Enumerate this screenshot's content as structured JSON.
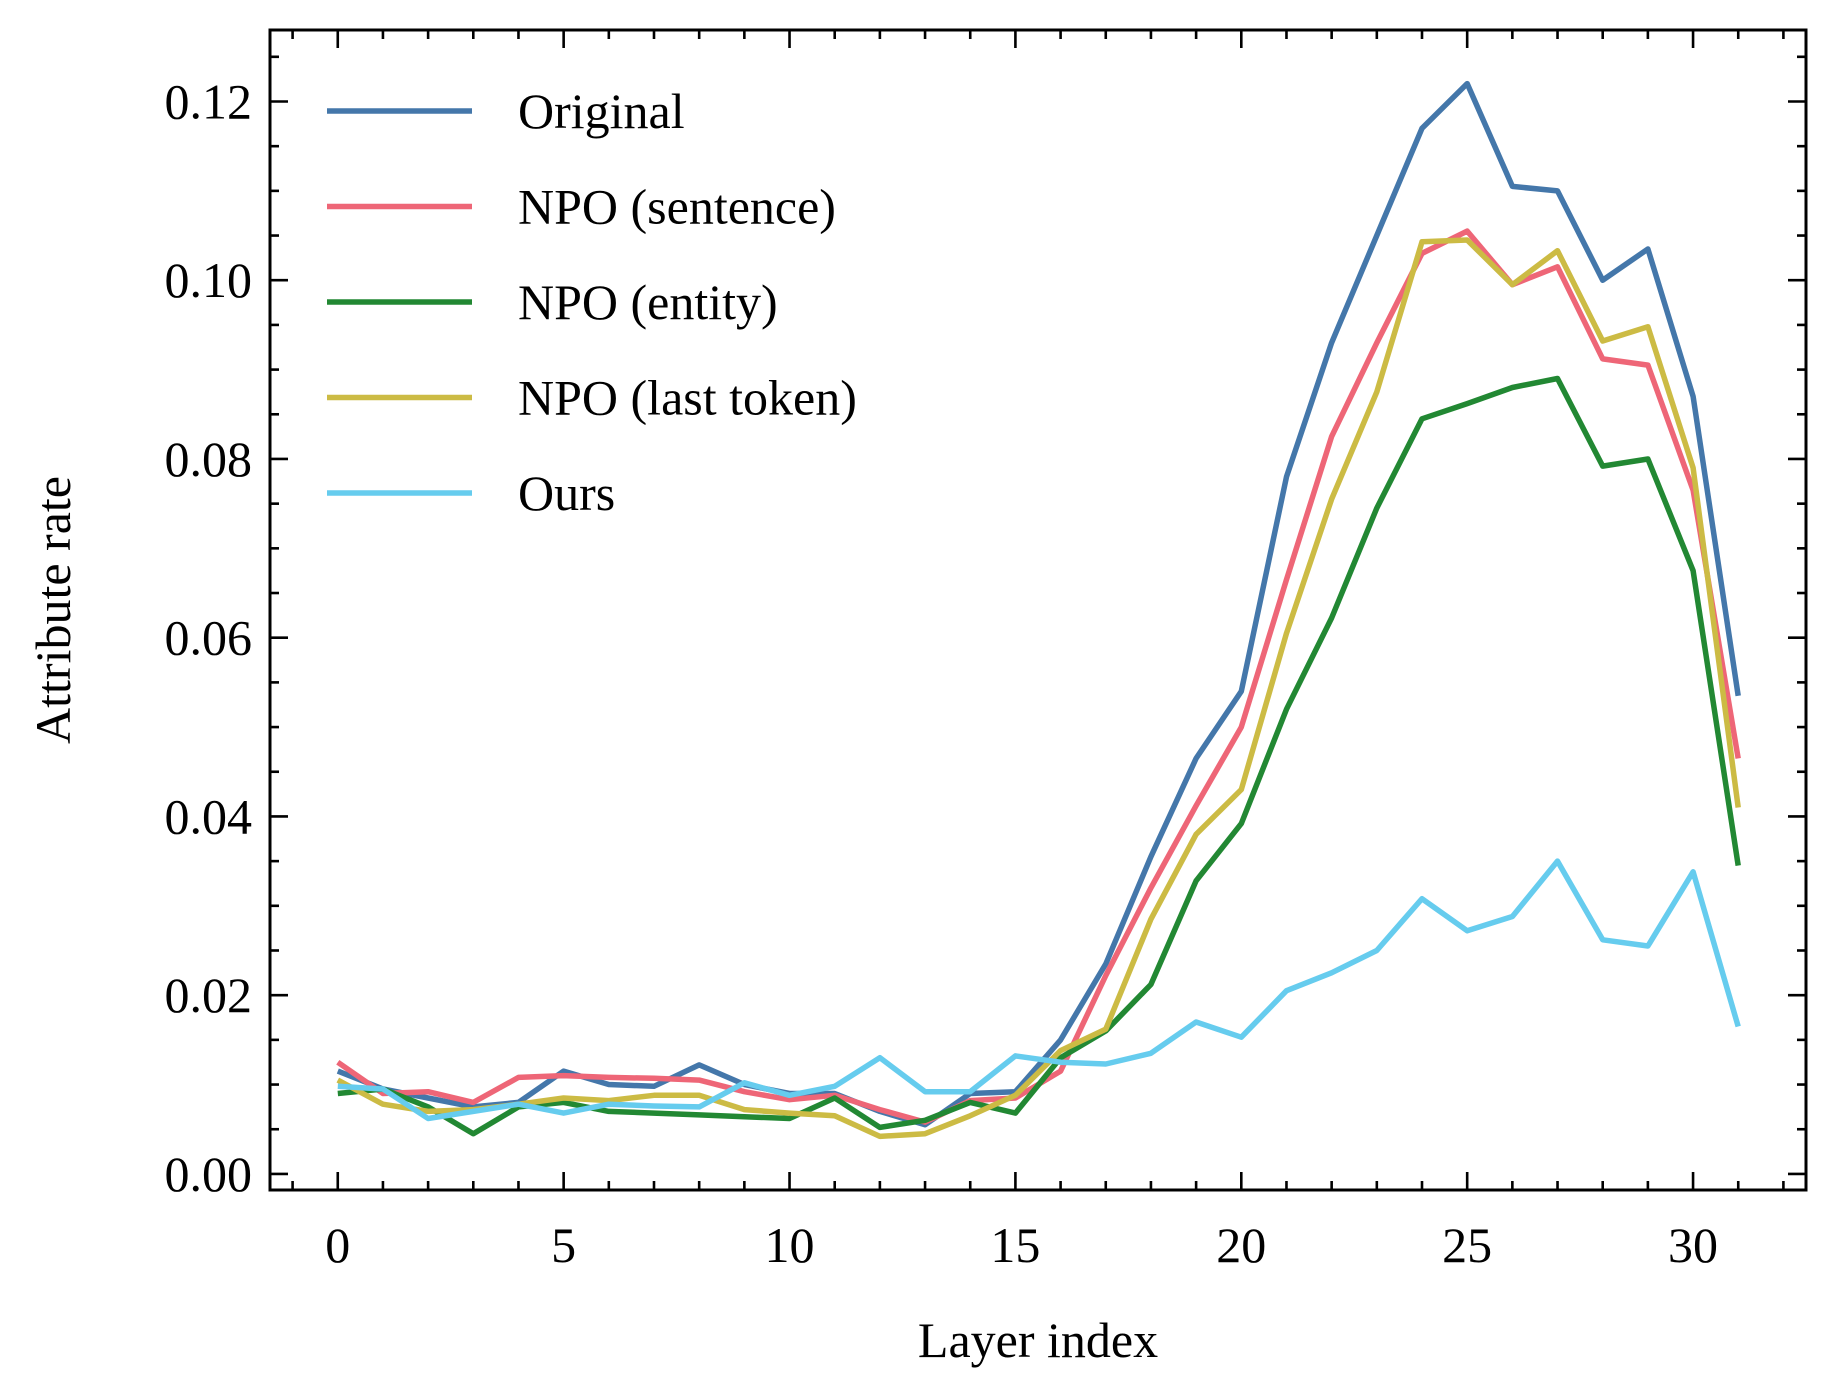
{
  "chart_data": {
    "type": "line",
    "xlabel": "Layer index",
    "ylabel": "Attribute rate",
    "xlim": [
      -1.5,
      32.5
    ],
    "ylim": [
      -0.0018,
      0.128
    ],
    "xticks": [
      0,
      5,
      10,
      15,
      20,
      25,
      30
    ],
    "xtick_labels": [
      "0",
      "5",
      "10",
      "15",
      "20",
      "25",
      "30"
    ],
    "yticks": [
      0.0,
      0.02,
      0.04,
      0.06,
      0.08,
      0.1,
      0.12
    ],
    "ytick_labels": [
      "0.00",
      "0.02",
      "0.04",
      "0.06",
      "0.08",
      "0.10",
      "0.12"
    ],
    "x_minor_step": 1,
    "y_minor_step": 0.005,
    "grid": false,
    "legend_position": "top-left",
    "x": [
      0,
      1,
      2,
      3,
      4,
      5,
      6,
      7,
      8,
      9,
      10,
      11,
      12,
      13,
      14,
      15,
      16,
      17,
      18,
      19,
      20,
      21,
      22,
      23,
      24,
      25,
      26,
      27,
      28,
      29,
      30,
      31
    ],
    "series": [
      {
        "name": "Original",
        "color": "#4477aa",
        "values": [
          0.0115,
          0.0095,
          0.0085,
          0.0075,
          0.008,
          0.0115,
          0.01,
          0.0098,
          0.0122,
          0.01,
          0.009,
          0.009,
          0.007,
          0.0055,
          0.009,
          0.0092,
          0.015,
          0.0235,
          0.0355,
          0.0465,
          0.054,
          0.078,
          0.093,
          0.105,
          0.117,
          0.122,
          0.1105,
          0.11,
          0.1,
          0.1035,
          0.087,
          0.0535
        ]
      },
      {
        "name": "NPO (sentence)",
        "color": "#ee6677",
        "values": [
          0.0125,
          0.009,
          0.0092,
          0.008,
          0.0108,
          0.011,
          0.0108,
          0.0107,
          0.0105,
          0.0092,
          0.0083,
          0.0088,
          0.0072,
          0.0058,
          0.0082,
          0.0085,
          0.0115,
          0.0222,
          0.032,
          0.0412,
          0.05,
          0.0665,
          0.0825,
          0.093,
          0.103,
          0.1055,
          0.0995,
          0.1015,
          0.0912,
          0.0905,
          0.0765,
          0.0465
        ]
      },
      {
        "name": "NPO (entity)",
        "color": "#228833",
        "values": [
          0.009,
          0.0095,
          0.0075,
          0.0045,
          0.0075,
          0.008,
          0.007,
          0.0068,
          0.0066,
          0.0064,
          0.0062,
          0.0085,
          0.0052,
          0.006,
          0.008,
          0.0068,
          0.013,
          0.016,
          0.0212,
          0.0328,
          0.0392,
          0.052,
          0.0622,
          0.0745,
          0.0845,
          0.0862,
          0.088,
          0.089,
          0.0792,
          0.08,
          0.0675,
          0.0345
        ]
      },
      {
        "name": "NPO (last token)",
        "color": "#ccbb44",
        "values": [
          0.0105,
          0.0078,
          0.007,
          0.0072,
          0.0078,
          0.0085,
          0.0082,
          0.0088,
          0.0088,
          0.0072,
          0.0068,
          0.0065,
          0.0042,
          0.0045,
          0.0065,
          0.0088,
          0.0138,
          0.0162,
          0.0285,
          0.038,
          0.043,
          0.0605,
          0.0755,
          0.0875,
          0.1043,
          0.1045,
          0.0995,
          0.1033,
          0.0932,
          0.0948,
          0.079,
          0.041
        ]
      },
      {
        "name": "Ours",
        "color": "#66ccee",
        "values": [
          0.0098,
          0.0095,
          0.0062,
          0.007,
          0.0078,
          0.0068,
          0.0078,
          0.0076,
          0.0075,
          0.0102,
          0.0088,
          0.0098,
          0.013,
          0.0092,
          0.0092,
          0.0132,
          0.0125,
          0.0123,
          0.0135,
          0.017,
          0.0153,
          0.0205,
          0.0225,
          0.025,
          0.0308,
          0.0272,
          0.0288,
          0.035,
          0.0262,
          0.0255,
          0.0338,
          0.0165
        ]
      }
    ]
  }
}
